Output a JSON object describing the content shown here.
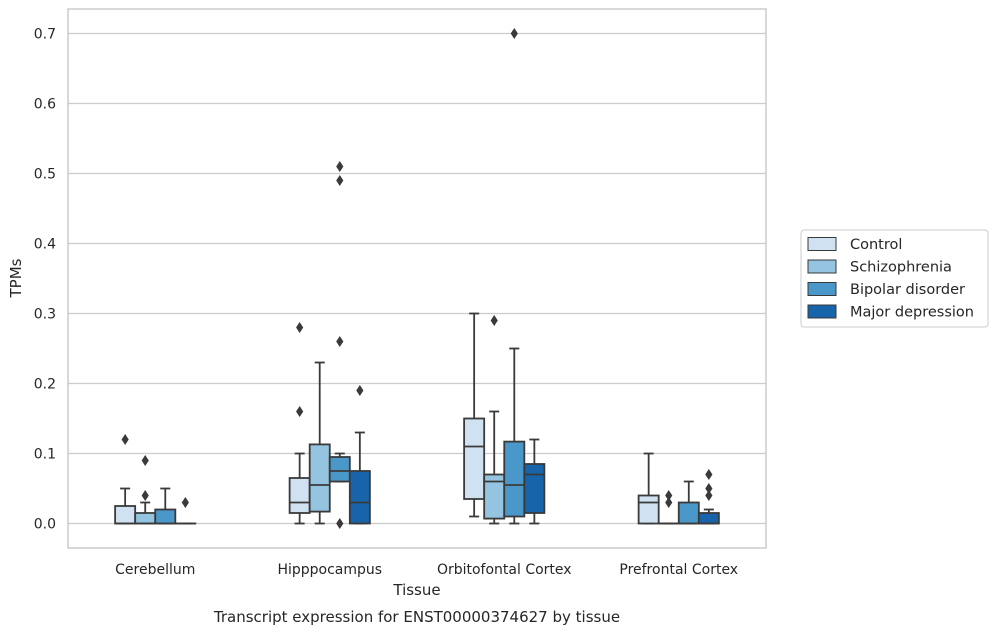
{
  "caption": "Transcript expression for ENST00000374627 by tissue",
  "colors": {
    "grid": "#cccccc",
    "frame": "#cccccc",
    "line": "#3a3a3a",
    "text": "#262626"
  },
  "chart_data": {
    "type": "box",
    "xlabel": "Tissue",
    "ylabel": "TPMs",
    "ylim": [
      -0.035,
      0.735
    ],
    "yticks": [
      0.0,
      0.1,
      0.2,
      0.3,
      0.4,
      0.5,
      0.6,
      0.7
    ],
    "ytick_labels": [
      "0.0",
      "0.1",
      "0.2",
      "0.3",
      "0.4",
      "0.5",
      "0.6",
      "0.7"
    ],
    "grid": "horizontal",
    "legend_position": "right",
    "categories": [
      "Cerebellum",
      "Hipppocampus",
      "Orbitofontal Cortex",
      "Prefrontal Cortex"
    ],
    "series": [
      {
        "name": "Control",
        "color": "#d0e1f2",
        "boxes": [
          {
            "whisker_low": 0.0,
            "q1": 0.0,
            "median": 0.0,
            "q3": 0.025,
            "whisker_high": 0.05,
            "outliers": [
              0.12
            ]
          },
          {
            "whisker_low": 0.0,
            "q1": 0.015,
            "median": 0.03,
            "q3": 0.065,
            "whisker_high": 0.1,
            "outliers": [
              0.16,
              0.28
            ]
          },
          {
            "whisker_low": 0.01,
            "q1": 0.035,
            "median": 0.11,
            "q3": 0.15,
            "whisker_high": 0.3,
            "outliers": []
          },
          {
            "whisker_low": 0.0,
            "q1": 0.0,
            "median": 0.03,
            "q3": 0.04,
            "whisker_high": 0.1,
            "outliers": []
          }
        ]
      },
      {
        "name": "Schizophrenia",
        "color": "#94c4df",
        "boxes": [
          {
            "whisker_low": 0.0,
            "q1": 0.0,
            "median": 0.0,
            "q3": 0.015,
            "whisker_high": 0.03,
            "outliers": [
              0.04,
              0.09
            ]
          },
          {
            "whisker_low": 0.0,
            "q1": 0.017,
            "median": 0.055,
            "q3": 0.113,
            "whisker_high": 0.23,
            "outliers": []
          },
          {
            "whisker_low": 0.0,
            "q1": 0.007,
            "median": 0.06,
            "q3": 0.07,
            "whisker_high": 0.16,
            "outliers": [
              0.29
            ]
          },
          {
            "whisker_low": 0.0,
            "q1": 0.0,
            "median": 0.0,
            "q3": 0.0,
            "whisker_high": 0.0,
            "outliers": [
              0.03,
              0.04
            ]
          }
        ]
      },
      {
        "name": "Bipolar disorder",
        "color": "#4a98c9",
        "boxes": [
          {
            "whisker_low": 0.0,
            "q1": 0.0,
            "median": 0.0,
            "q3": 0.02,
            "whisker_high": 0.05,
            "outliers": []
          },
          {
            "whisker_low": 0.06,
            "q1": 0.06,
            "median": 0.075,
            "q3": 0.095,
            "whisker_high": 0.1,
            "outliers": [
              0.0,
              0.26,
              0.49,
              0.51
            ]
          },
          {
            "whisker_low": 0.0,
            "q1": 0.01,
            "median": 0.055,
            "q3": 0.117,
            "whisker_high": 0.25,
            "outliers": [
              0.7
            ]
          },
          {
            "whisker_low": 0.0,
            "q1": 0.0,
            "median": 0.0,
            "q3": 0.03,
            "whisker_high": 0.06,
            "outliers": []
          }
        ]
      },
      {
        "name": "Major depression",
        "color": "#1764ab",
        "boxes": [
          {
            "whisker_low": 0.0,
            "q1": 0.0,
            "median": 0.0,
            "q3": 0.0,
            "whisker_high": 0.0,
            "outliers": [
              0.03
            ]
          },
          {
            "whisker_low": 0.0,
            "q1": 0.0,
            "median": 0.03,
            "q3": 0.075,
            "whisker_high": 0.13,
            "outliers": [
              0.19
            ]
          },
          {
            "whisker_low": 0.0,
            "q1": 0.015,
            "median": 0.07,
            "q3": 0.085,
            "whisker_high": 0.12,
            "outliers": []
          },
          {
            "whisker_low": 0.0,
            "q1": 0.0,
            "median": 0.0,
            "q3": 0.015,
            "whisker_high": 0.02,
            "outliers": [
              0.04,
              0.05,
              0.07
            ]
          }
        ]
      }
    ]
  }
}
